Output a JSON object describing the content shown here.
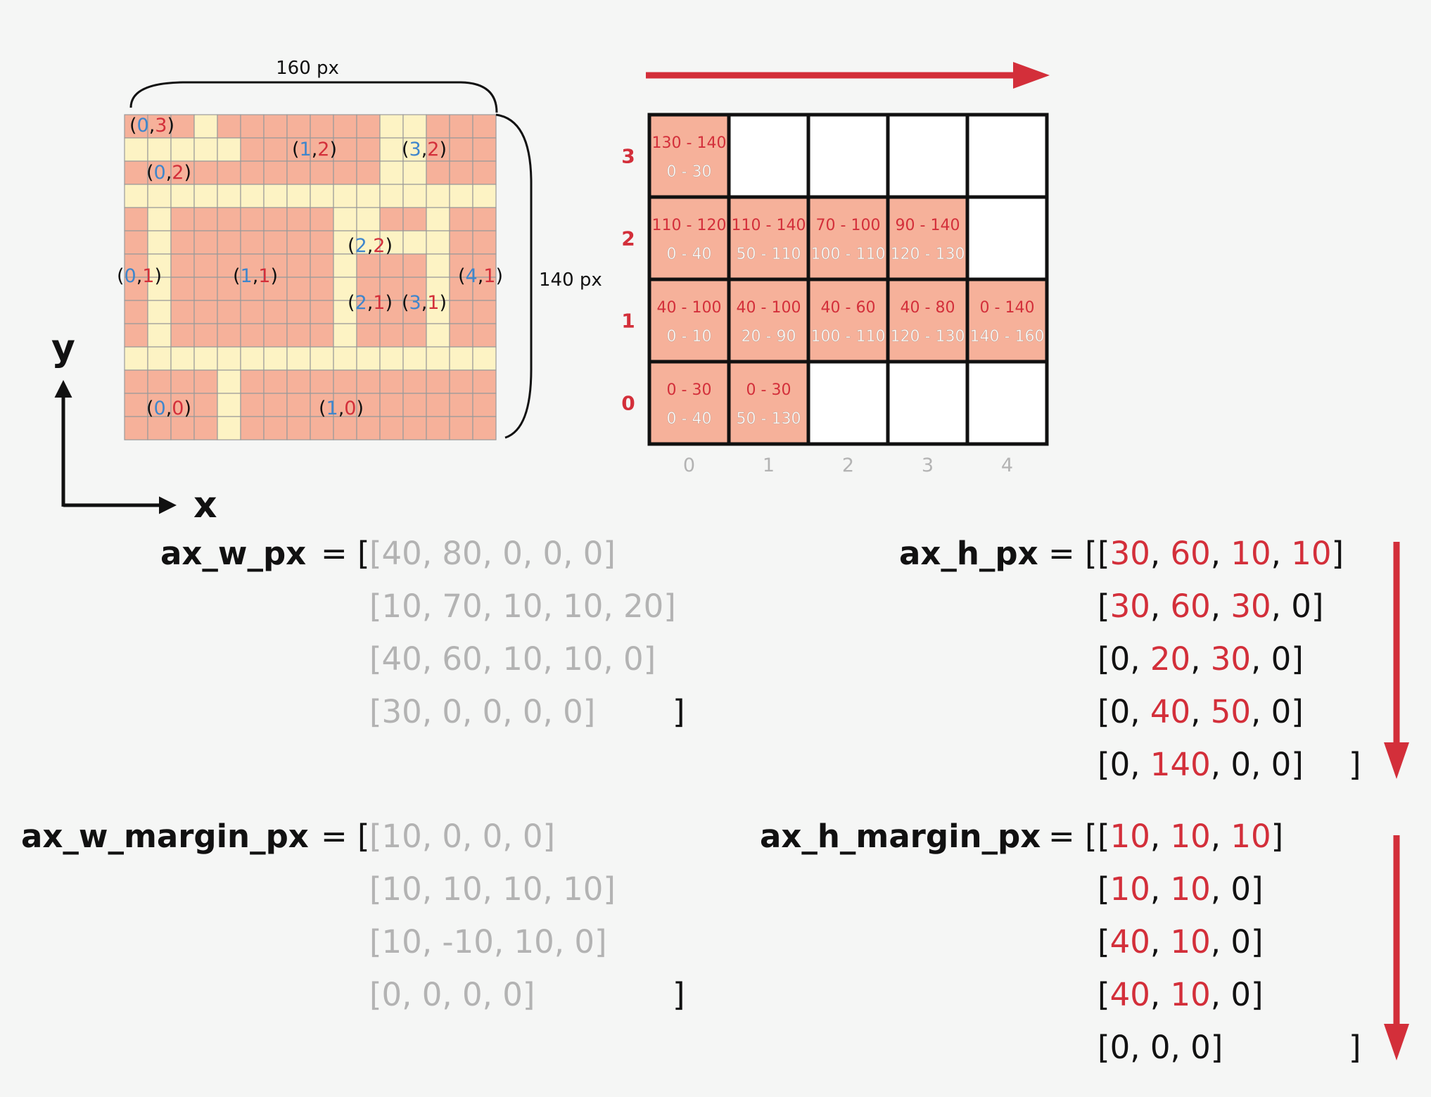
{
  "colors": {
    "salmon": "#f6b19a",
    "cream": "#fdf3c4",
    "red": "#d32f3a",
    "blue": "#3f86cc",
    "gray": "#b3b3b3",
    "black": "#111111",
    "background": "#f5f6f5"
  },
  "pixel_grid": {
    "width_label": "160 px",
    "height_label": "140 px",
    "cols": 16,
    "rows": 14,
    "cream_rows": [
      "SSSCSSSSSSSCCSSS",
      "CCCCCSSSSSSCCSSS",
      "SSSSSSSSSSSCCSSS",
      "CCCCCCCCCCCCCCCC",
      "SCSSSSSSSCCSSCSS",
      "SCSSSSSSSCCCCCSS",
      "SCSSSSSSSCSSSCSS",
      "SCSSSSSSSCSSSCSS",
      "SCSSSSSSSCSSSCSS",
      "SCSSSSSSSCSSSCSS",
      "CCCCCCCCCCCCCCCC",
      "SSSSCSSSSSSSSSSS",
      "SSSSCSSSSSSSSSSS",
      "SSSSCSSSSSSSSSSS"
    ],
    "cell_labels": [
      {
        "x": "0",
        "y": "3"
      },
      {
        "x": "1",
        "y": "2"
      },
      {
        "x": "3",
        "y": "2"
      },
      {
        "x": "0",
        "y": "2"
      },
      {
        "x": "2",
        "y": "2"
      },
      {
        "x": "0",
        "y": "1"
      },
      {
        "x": "1",
        "y": "1"
      },
      {
        "x": "4",
        "y": "1"
      },
      {
        "x": "2",
        "y": "1"
      },
      {
        "x": "3",
        "y": "1"
      },
      {
        "x": "0",
        "y": "0"
      },
      {
        "x": "1",
        "y": "0"
      }
    ]
  },
  "axes": {
    "x_label": "x",
    "y_label": "y"
  },
  "range_grid": {
    "row_labels": [
      "3",
      "2",
      "1",
      "0"
    ],
    "col_labels": [
      "0",
      "1",
      "2",
      "3",
      "4"
    ],
    "rows": [
      [
        {
          "filled": true,
          "top": "130 - 140",
          "bottom": "0 - 30"
        },
        {
          "filled": false
        },
        {
          "filled": false
        },
        {
          "filled": false
        },
        {
          "filled": false
        }
      ],
      [
        {
          "filled": true,
          "top": "110 - 120",
          "bottom": "0 - 40"
        },
        {
          "filled": true,
          "top": "110 - 140",
          "bottom": "50 - 110"
        },
        {
          "filled": true,
          "top": "70 - 100",
          "bottom": "100 - 110"
        },
        {
          "filled": true,
          "top": "90 - 140",
          "bottom": "120 - 130"
        },
        {
          "filled": false
        }
      ],
      [
        {
          "filled": true,
          "top": "40 - 100",
          "bottom": "0 - 10"
        },
        {
          "filled": true,
          "top": "40 - 100",
          "bottom": "20 - 90"
        },
        {
          "filled": true,
          "top": "40 - 60",
          "bottom": "100 - 110"
        },
        {
          "filled": true,
          "top": "40 - 80",
          "bottom": "120 - 130"
        },
        {
          "filled": true,
          "top": "0 - 140",
          "bottom": "140 - 160"
        }
      ],
      [
        {
          "filled": true,
          "top": "0 - 30",
          "bottom": "0 - 40"
        },
        {
          "filled": true,
          "top": "0 - 30",
          "bottom": "50 - 130"
        },
        {
          "filled": false
        },
        {
          "filled": false
        },
        {
          "filled": false
        }
      ]
    ]
  },
  "ax_w_px": {
    "name": "ax_w_px",
    "rows": [
      "[40, 80, 0, 0, 0]",
      "[10, 70, 10, 10, 20]",
      "[40, 60, 10, 10, 0]",
      "[30, 0, 0, 0, 0]"
    ]
  },
  "ax_w_margin_px": {
    "name": "ax_w_margin_px",
    "rows": [
      "[10, 0, 0, 0]",
      "[10, 10, 10, 10]",
      "[10, -10, 10, 0]",
      "[0, 0, 0, 0]"
    ]
  },
  "ax_h_px": {
    "name": "ax_h_px",
    "rows": [
      [
        "30",
        "60",
        "10",
        "10"
      ],
      [
        "30",
        "60",
        "30",
        "0"
      ],
      [
        "0",
        "20",
        "30",
        "0"
      ],
      [
        "0",
        "40",
        "50",
        "0"
      ],
      [
        "0",
        "140",
        "0",
        "0"
      ]
    ]
  },
  "ax_h_margin_px": {
    "name": "ax_h_margin_px",
    "rows": [
      [
        "10",
        "10",
        "10"
      ],
      [
        "10",
        "10",
        "0"
      ],
      [
        "40",
        "10",
        "0"
      ],
      [
        "40",
        "10",
        "0"
      ],
      [
        "0",
        "0",
        "0"
      ]
    ]
  },
  "symbols": {
    "equals_open": "= [",
    "close": "]"
  }
}
